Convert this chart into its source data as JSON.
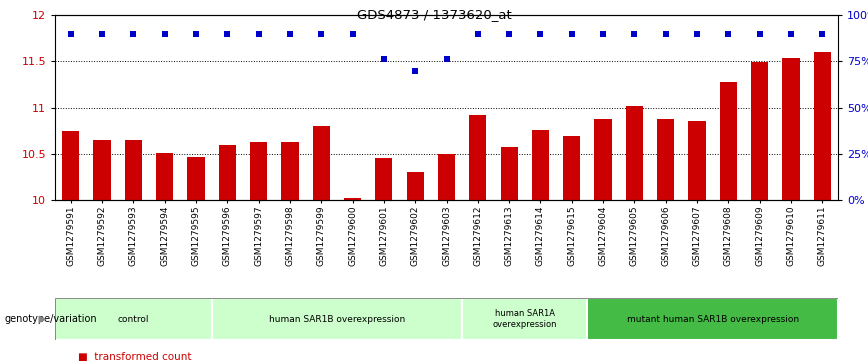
{
  "title": "GDS4873 / 1373620_at",
  "samples": [
    "GSM1279591",
    "GSM1279592",
    "GSM1279593",
    "GSM1279594",
    "GSM1279595",
    "GSM1279596",
    "GSM1279597",
    "GSM1279598",
    "GSM1279599",
    "GSM1279600",
    "GSM1279601",
    "GSM1279602",
    "GSM1279603",
    "GSM1279612",
    "GSM1279613",
    "GSM1279614",
    "GSM1279615",
    "GSM1279604",
    "GSM1279605",
    "GSM1279606",
    "GSM1279607",
    "GSM1279608",
    "GSM1279609",
    "GSM1279610",
    "GSM1279611"
  ],
  "bar_values": [
    10.75,
    10.65,
    10.65,
    10.51,
    10.47,
    10.6,
    10.63,
    10.63,
    10.8,
    10.02,
    10.45,
    10.3,
    10.5,
    10.92,
    10.57,
    10.76,
    10.69,
    10.88,
    11.02,
    10.88,
    10.85,
    11.28,
    11.49,
    11.53,
    11.6
  ],
  "percentile_values": [
    90,
    90,
    90,
    90,
    90,
    90,
    90,
    90,
    90,
    90,
    76,
    70,
    76,
    90,
    90,
    90,
    90,
    90,
    90,
    90,
    90,
    90,
    90,
    90,
    90
  ],
  "bar_color": "#cc0000",
  "dot_color": "#0000cc",
  "ylim_left": [
    10.0,
    12.0
  ],
  "ylim_right": [
    0,
    100
  ],
  "yticks_left": [
    10.0,
    10.5,
    11.0,
    11.5,
    12.0
  ],
  "yticks_right": [
    0,
    25,
    50,
    75,
    100
  ],
  "groups": [
    {
      "label": "control",
      "start": 0,
      "end": 4,
      "color": "#ccffcc"
    },
    {
      "label": "human SAR1B overexpression",
      "start": 5,
      "end": 12,
      "color": "#ccffcc"
    },
    {
      "label": "human SAR1A\noverexpression",
      "start": 13,
      "end": 16,
      "color": "#ccffcc"
    },
    {
      "label": "mutant human SAR1B overexpression",
      "start": 17,
      "end": 24,
      "color": "#44bb44"
    }
  ],
  "xlabel_genotype": "genotype/variation",
  "background_color": "#ffffff",
  "tick_area_color": "#c8c8c8"
}
